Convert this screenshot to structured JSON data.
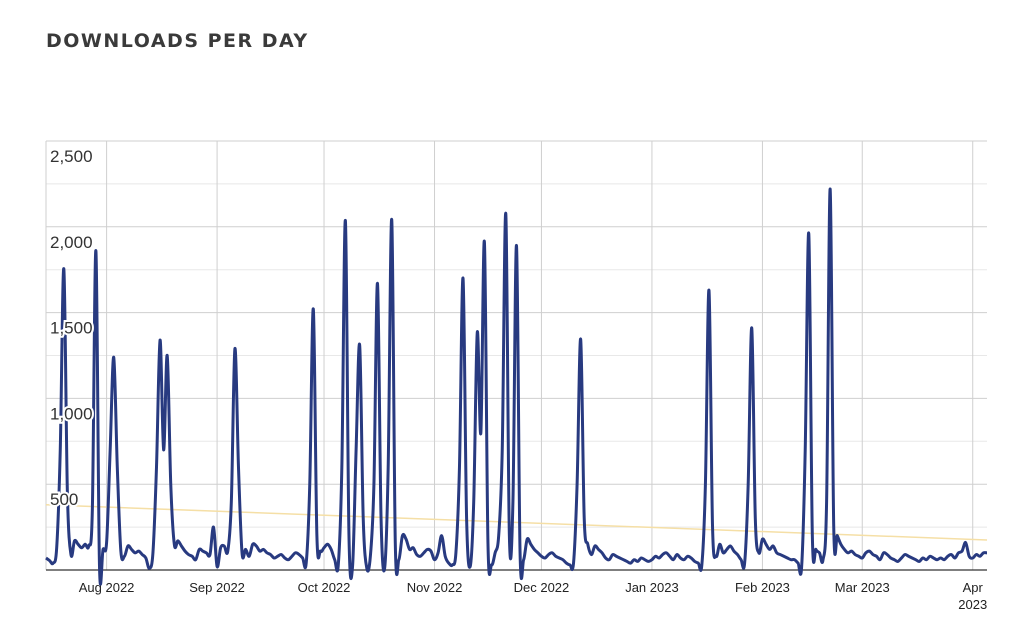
{
  "chart_data": {
    "type": "line",
    "title": "DOWNLOADS PER DAY",
    "xlim": [
      0,
      264
    ],
    "xticks": [
      {
        "value": 17,
        "label": "Aug 2022"
      },
      {
        "value": 48,
        "label": "Sep 2022"
      },
      {
        "value": 78,
        "label": "Oct 2022"
      },
      {
        "value": 109,
        "label": "Nov 2022"
      },
      {
        "value": 139,
        "label": "Dec 2022"
      },
      {
        "value": 170,
        "label": "Jan 2023"
      },
      {
        "value": 201,
        "label": "Feb 2023"
      },
      {
        "value": 229,
        "label": "Mar 2023"
      },
      {
        "value": 260,
        "label": "Apr 2023"
      }
    ],
    "ylim": [
      0,
      2500
    ],
    "yticks": [
      500,
      {
        "value": 1000,
        "label": "1,000"
      },
      {
        "value": 1500,
        "label": "1,500"
      },
      {
        "value": 2000,
        "label": "2,000"
      },
      {
        "value": 2500,
        "label": "2,500"
      }
    ],
    "y_minor_ticks": [
      250,
      750,
      1250,
      1750,
      2250
    ],
    "grid": true,
    "series": [
      {
        "color": "#283a80",
        "values": [
          70,
          55,
          40,
          130,
          700,
          1755,
          450,
          90,
          170,
          150,
          130,
          150,
          140,
          350,
          1860,
          30,
          120,
          160,
          700,
          1240,
          600,
          110,
          80,
          140,
          120,
          100,
          110,
          90,
          70,
          10,
          100,
          600,
          1340,
          700,
          1250,
          500,
          150,
          170,
          140,
          110,
          90,
          80,
          60,
          120,
          110,
          100,
          90,
          250,
          20,
          130,
          140,
          110,
          400,
          1290,
          600,
          100,
          120,
          80,
          150,
          140,
          110,
          120,
          100,
          90,
          70,
          80,
          90,
          70,
          60,
          80,
          100,
          90,
          70,
          40,
          500,
          1520,
          200,
          110,
          130,
          150,
          120,
          60,
          30,
          600,
          2035,
          200,
          20,
          700,
          1310,
          300,
          10,
          80,
          500,
          1670,
          300,
          10,
          600,
          2040,
          150,
          60,
          200,
          180,
          120,
          130,
          90,
          80,
          100,
          120,
          110,
          60,
          100,
          200,
          80,
          40,
          30,
          100,
          600,
          1700,
          300,
          20,
          400,
          1385,
          800,
          1910,
          150,
          30,
          100,
          200,
          700,
          2075,
          200,
          400,
          1890,
          100,
          60,
          180,
          150,
          120,
          100,
          80,
          70,
          90,
          100,
          80,
          70,
          60,
          40,
          30,
          40,
          500,
          1345,
          300,
          150,
          90,
          140,
          120,
          100,
          70,
          60,
          90,
          80,
          70,
          60,
          50,
          40,
          60,
          50,
          70,
          60,
          50,
          60,
          80,
          70,
          90,
          100,
          80,
          60,
          90,
          70,
          60,
          80,
          70,
          50,
          40,
          30,
          500,
          1630,
          250,
          80,
          150,
          100,
          120,
          140,
          110,
          90,
          60,
          40,
          500,
          1410,
          300,
          100,
          180,
          150,
          120,
          140,
          100,
          90,
          80,
          70,
          60,
          60,
          40,
          20,
          700,
          1960,
          200,
          120,
          100,
          60,
          400,
          2220,
          250,
          200,
          150,
          120,
          100,
          110,
          90,
          80,
          70,
          100,
          110,
          90,
          80,
          60,
          100,
          90,
          70,
          60,
          50,
          70,
          90,
          80,
          70,
          60,
          50,
          70,
          60,
          80,
          70,
          60,
          70,
          60,
          80,
          90,
          70,
          100,
          110,
          160,
          80,
          70,
          90,
          80,
          100,
          100
        ]
      }
    ],
    "trend": {
      "color": "#f5dfa6",
      "x": [
        0,
        264
      ],
      "values": [
        380,
        175
      ]
    }
  }
}
